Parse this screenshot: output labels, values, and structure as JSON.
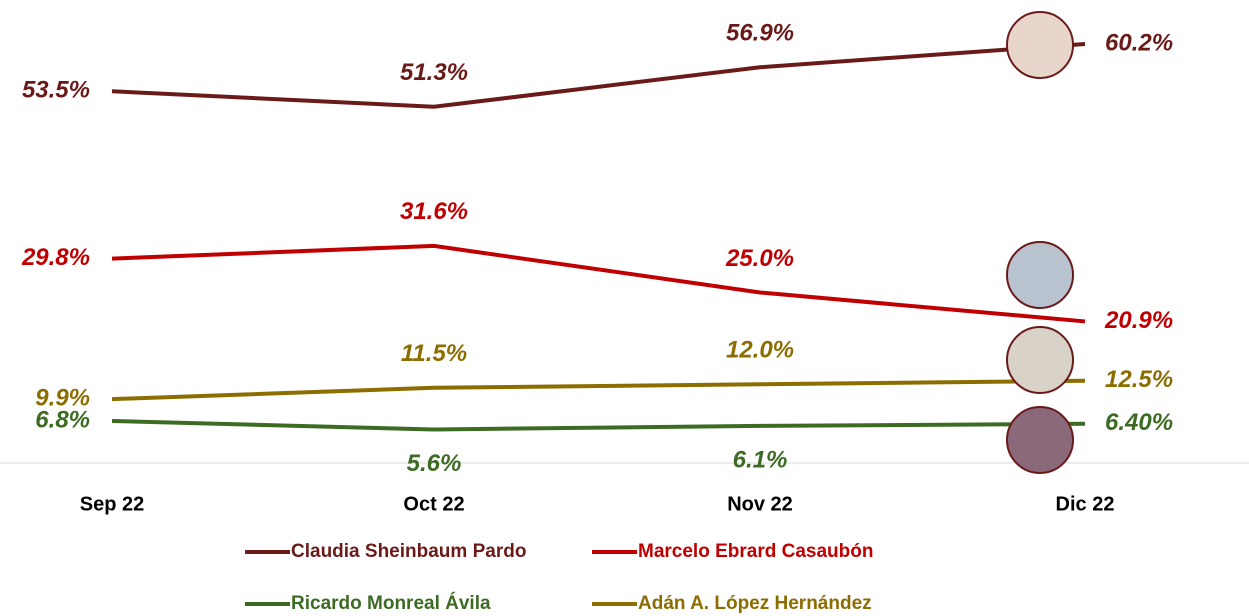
{
  "chart_data": {
    "type": "line",
    "categories": [
      "Sep 22",
      "Oct 22",
      "Nov 22",
      "Dic 22"
    ],
    "ylim": [
      0,
      66
    ],
    "series": [
      {
        "name": "Claudia Sheinbaum Pardo",
        "color": "#6b1a1a",
        "values": [
          53.5,
          51.3,
          56.9,
          60.2
        ],
        "value_labels": [
          "53.5%",
          "51.3%",
          "56.9%",
          "60.2%"
        ]
      },
      {
        "name": "Marcelo Ebrard Casaubón",
        "color": "#c00000",
        "values": [
          29.8,
          31.6,
          25.0,
          20.9
        ],
        "value_labels": [
          "29.8%",
          "31.6%",
          "25.0%",
          "20.9%"
        ]
      },
      {
        "name": "Ricardo Monreal Ávila",
        "color": "#3d6b24",
        "values": [
          6.8,
          5.6,
          6.1,
          6.4
        ],
        "value_labels": [
          "6.8%",
          "5.6%",
          "6.1%",
          "6.40%"
        ]
      },
      {
        "name": "Adán A. López Hernández",
        "color": "#8c6d00",
        "values": [
          9.9,
          11.5,
          12.0,
          12.5
        ],
        "value_labels": [
          "9.9%",
          "11.5%",
          "12.0%",
          "12.5%"
        ]
      }
    ]
  }
}
